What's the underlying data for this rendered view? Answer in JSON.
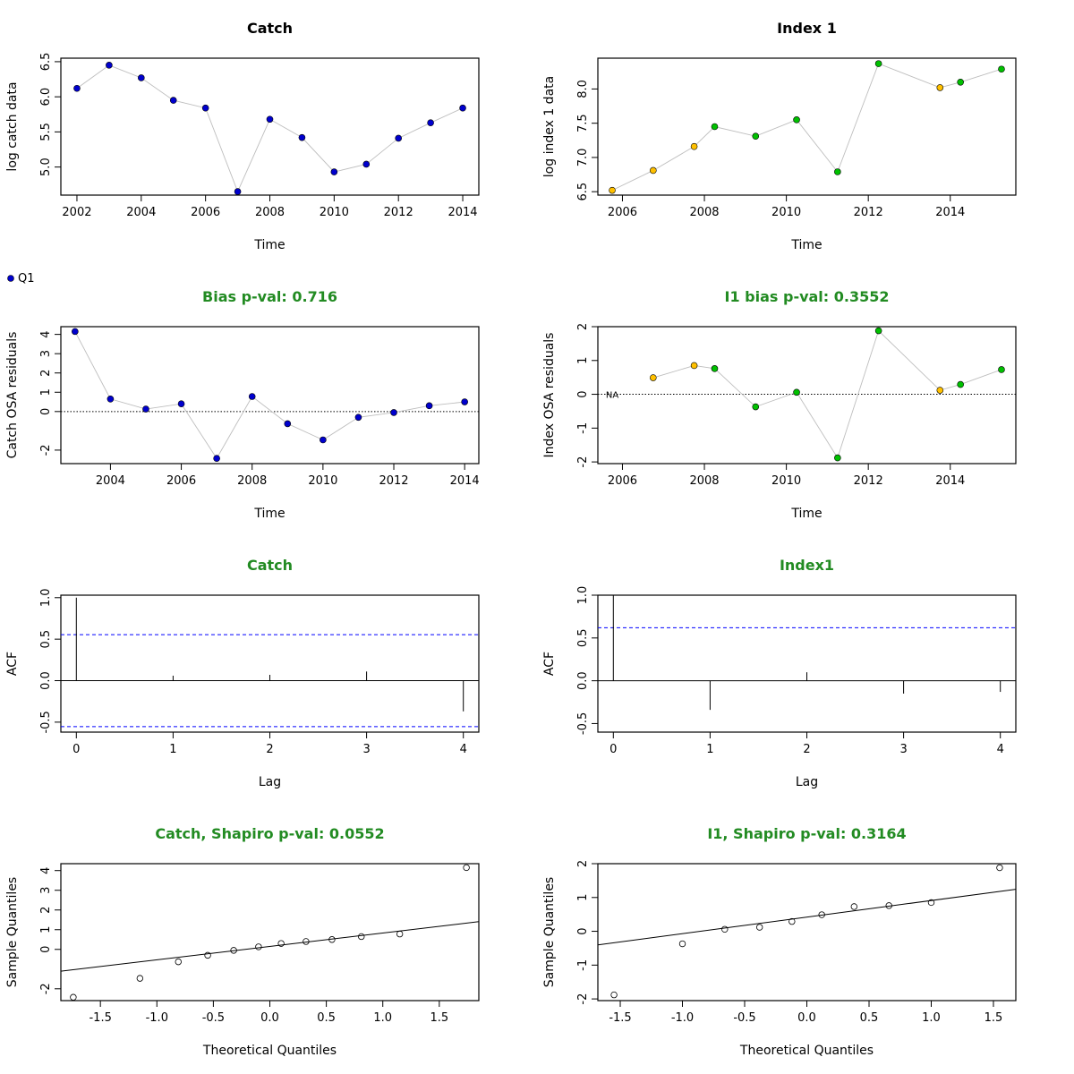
{
  "colors": {
    "green_title": "#228B22",
    "catch_point": "#0000CD",
    "index_point_a": "#FFC000",
    "index_point_b": "#00C000",
    "ref_line": "#0000FF",
    "conn_line": "#BEBEBE"
  },
  "legend": {
    "label": "Q1",
    "color": "#0000CD"
  },
  "chart_data": [
    {
      "id": "catch-log",
      "type": "scatter",
      "title": "Catch",
      "title_color": "#000000",
      "xlabel": "Time",
      "ylabel": "log catch data",
      "xlim": [
        2001.5,
        2014.5
      ],
      "ylim": [
        4.6,
        6.55
      ],
      "xticks": [
        2002,
        2004,
        2006,
        2008,
        2010,
        2012,
        2014
      ],
      "yticks": [
        5.0,
        5.5,
        6.0,
        6.5
      ],
      "ytick_labels": [
        "5.0",
        "5.5",
        "6.0",
        "6.5"
      ],
      "connect": true,
      "points": [
        {
          "x": 2002,
          "y": 6.12,
          "color": "#0000CD"
        },
        {
          "x": 2003,
          "y": 6.45,
          "color": "#0000CD"
        },
        {
          "x": 2004,
          "y": 6.27,
          "color": "#0000CD"
        },
        {
          "x": 2005,
          "y": 5.95,
          "color": "#0000CD"
        },
        {
          "x": 2006,
          "y": 5.84,
          "color": "#0000CD"
        },
        {
          "x": 2007,
          "y": 4.65,
          "color": "#0000CD"
        },
        {
          "x": 2008,
          "y": 5.68,
          "color": "#0000CD"
        },
        {
          "x": 2009,
          "y": 5.42,
          "color": "#0000CD"
        },
        {
          "x": 2010,
          "y": 4.93,
          "color": "#0000CD"
        },
        {
          "x": 2011,
          "y": 5.04,
          "color": "#0000CD"
        },
        {
          "x": 2012,
          "y": 5.41,
          "color": "#0000CD"
        },
        {
          "x": 2013,
          "y": 5.63,
          "color": "#0000CD"
        },
        {
          "x": 2014,
          "y": 5.84,
          "color": "#0000CD"
        }
      ]
    },
    {
      "id": "index-log",
      "type": "scatter",
      "title": "Index 1",
      "title_color": "#000000",
      "xlabel": "Time",
      "ylabel": "log index 1 data",
      "xlim": [
        2005.4,
        2015.6
      ],
      "ylim": [
        6.45,
        8.45
      ],
      "xticks": [
        2006,
        2008,
        2010,
        2012,
        2014
      ],
      "yticks": [
        6.5,
        7.0,
        7.5,
        8.0
      ],
      "ytick_labels": [
        "6.5",
        "7.0",
        "7.5",
        "8.0"
      ],
      "connect": true,
      "points": [
        {
          "x": 2005.75,
          "y": 6.52,
          "color": "#FFC000"
        },
        {
          "x": 2006.75,
          "y": 6.81,
          "color": "#FFC000"
        },
        {
          "x": 2007.75,
          "y": 7.16,
          "color": "#FFC000"
        },
        {
          "x": 2008.25,
          "y": 7.45,
          "color": "#00C000"
        },
        {
          "x": 2009.25,
          "y": 7.31,
          "color": "#00C000"
        },
        {
          "x": 2010.25,
          "y": 7.55,
          "color": "#00C000"
        },
        {
          "x": 2011.25,
          "y": 6.79,
          "color": "#00C000"
        },
        {
          "x": 2012.25,
          "y": 8.37,
          "color": "#00C000"
        },
        {
          "x": 2013.75,
          "y": 8.02,
          "color": "#FFC000"
        },
        {
          "x": 2014.25,
          "y": 8.1,
          "color": "#00C000"
        },
        {
          "x": 2015.25,
          "y": 8.29,
          "color": "#00C000"
        }
      ]
    },
    {
      "id": "catch-resid",
      "type": "scatter",
      "title": "Bias p-val: 0.716",
      "title_color": "#228B22",
      "xlabel": "Time",
      "ylabel": "Catch OSA residuals",
      "xlim": [
        2002.6,
        2014.4
      ],
      "ylim": [
        -2.7,
        4.4
      ],
      "xticks": [
        2004,
        2006,
        2008,
        2010,
        2012,
        2014
      ],
      "yticks": [
        -2,
        0,
        1,
        2,
        3,
        4
      ],
      "ytick_labels": [
        "-2",
        "0",
        "1",
        "2",
        "3",
        "4"
      ],
      "zero_line": 0,
      "connect": true,
      "points": [
        {
          "x": 2003,
          "y": 4.15,
          "color": "#0000CD"
        },
        {
          "x": 2004,
          "y": 0.65,
          "color": "#0000CD"
        },
        {
          "x": 2005,
          "y": 0.13,
          "color": "#0000CD"
        },
        {
          "x": 2006,
          "y": 0.4,
          "color": "#0000CD"
        },
        {
          "x": 2007,
          "y": -2.43,
          "color": "#0000CD"
        },
        {
          "x": 2008,
          "y": 0.78,
          "color": "#0000CD"
        },
        {
          "x": 2009,
          "y": -0.63,
          "color": "#0000CD"
        },
        {
          "x": 2010,
          "y": -1.47,
          "color": "#0000CD"
        },
        {
          "x": 2011,
          "y": -0.3,
          "color": "#0000CD"
        },
        {
          "x": 2012,
          "y": -0.05,
          "color": "#0000CD"
        },
        {
          "x": 2013,
          "y": 0.3,
          "color": "#0000CD"
        },
        {
          "x": 2014,
          "y": 0.5,
          "color": "#0000CD"
        }
      ]
    },
    {
      "id": "index-resid",
      "type": "scatter",
      "title": "I1 bias p-val: 0.3552",
      "title_color": "#228B22",
      "xlabel": "Time",
      "ylabel": "Index OSA residuals",
      "xlim": [
        2005.4,
        2015.6
      ],
      "ylim": [
        -2.05,
        2.0
      ],
      "xticks": [
        2006,
        2008,
        2010,
        2012,
        2014
      ],
      "yticks": [
        -2,
        -1,
        0,
        1,
        2
      ],
      "ytick_labels": [
        "-2",
        "-1",
        "0",
        "1",
        "2"
      ],
      "zero_line": 0,
      "na_label": "NA",
      "na_x": 2005.75,
      "connect": true,
      "points": [
        {
          "x": 2006.75,
          "y": 0.49,
          "color": "#FFC000"
        },
        {
          "x": 2007.75,
          "y": 0.85,
          "color": "#FFC000"
        },
        {
          "x": 2008.25,
          "y": 0.76,
          "color": "#00C000"
        },
        {
          "x": 2009.25,
          "y": -0.37,
          "color": "#00C000"
        },
        {
          "x": 2010.25,
          "y": 0.06,
          "color": "#00C000"
        },
        {
          "x": 2011.25,
          "y": -1.88,
          "color": "#00C000"
        },
        {
          "x": 2012.25,
          "y": 1.88,
          "color": "#00C000"
        },
        {
          "x": 2013.75,
          "y": 0.12,
          "color": "#FFC000"
        },
        {
          "x": 2014.25,
          "y": 0.29,
          "color": "#00C000"
        },
        {
          "x": 2015.25,
          "y": 0.73,
          "color": "#00C000"
        }
      ]
    },
    {
      "id": "catch-acf",
      "type": "bar",
      "title": "Catch",
      "title_color": "#228B22",
      "xlabel": "Lag",
      "ylabel": "ACF",
      "xlim": [
        -0.16,
        4.16
      ],
      "ylim": [
        -0.62,
        1.03
      ],
      "xticks": [
        0,
        1,
        2,
        3,
        4
      ],
      "yticks": [
        -0.5,
        0.0,
        0.5,
        1.0
      ],
      "ytick_labels": [
        "-0.5",
        "0.0",
        "0.5",
        "1.0"
      ],
      "ci": 0.554,
      "lags": [
        0,
        1,
        2,
        3,
        4
      ],
      "values": [
        1.0,
        0.06,
        0.07,
        0.11,
        -0.37
      ]
    },
    {
      "id": "index-acf",
      "type": "bar",
      "title": "Index1",
      "title_color": "#228B22",
      "xlabel": "Lag",
      "ylabel": "ACF",
      "xlim": [
        -0.16,
        4.16
      ],
      "ylim": [
        -0.6,
        1.0
      ],
      "xticks": [
        0,
        1,
        2,
        3,
        4
      ],
      "yticks": [
        -0.5,
        0.0,
        0.5,
        1.0
      ],
      "ytick_labels": [
        "-0.5",
        "0.0",
        "0.5",
        "1.0"
      ],
      "ci": 0.62,
      "lags": [
        0,
        1,
        2,
        3,
        4
      ],
      "values": [
        1.0,
        -0.34,
        0.1,
        -0.15,
        -0.13
      ]
    },
    {
      "id": "catch-qq",
      "type": "scatter",
      "title": "Catch, Shapiro p-val: 0.0552",
      "title_color": "#228B22",
      "xlabel": "Theoretical Quantiles",
      "ylabel": "Sample Quantiles",
      "xlim": [
        -1.85,
        1.85
      ],
      "ylim": [
        -2.6,
        4.35
      ],
      "xticks": [
        -1.5,
        -1.0,
        -0.5,
        0.0,
        0.5,
        1.0,
        1.5
      ],
      "xtick_labels": [
        "-1.5",
        "-1.0",
        "-0.5",
        "0.0",
        "0.5",
        "1.0",
        "1.5"
      ],
      "yticks": [
        -2,
        0,
        1,
        2,
        3,
        4
      ],
      "ytick_labels": [
        "-2",
        "0",
        "1",
        "2",
        "3",
        "4"
      ],
      "connect": false,
      "open_points": true,
      "qq_line": {
        "intercept": 0.15,
        "slope": 0.68
      },
      "points": [
        {
          "x": -1.74,
          "y": -2.43
        },
        {
          "x": -1.15,
          "y": -1.47
        },
        {
          "x": -0.81,
          "y": -0.63
        },
        {
          "x": -0.55,
          "y": -0.3
        },
        {
          "x": -0.32,
          "y": -0.05
        },
        {
          "x": -0.1,
          "y": 0.13
        },
        {
          "x": 0.1,
          "y": 0.3
        },
        {
          "x": 0.32,
          "y": 0.4
        },
        {
          "x": 0.55,
          "y": 0.5
        },
        {
          "x": 0.81,
          "y": 0.65
        },
        {
          "x": 1.15,
          "y": 0.78
        },
        {
          "x": 1.74,
          "y": 4.15
        }
      ]
    },
    {
      "id": "index-qq",
      "type": "scatter",
      "title": "I1, Shapiro p-val: 0.3164",
      "title_color": "#228B22",
      "xlabel": "Theoretical Quantiles",
      "ylabel": "Sample Quantiles",
      "xlim": [
        -1.68,
        1.68
      ],
      "ylim": [
        -2.05,
        2.0
      ],
      "xticks": [
        -1.5,
        -1.0,
        -0.5,
        0.0,
        0.5,
        1.0,
        1.5
      ],
      "xtick_labels": [
        "-1.5",
        "-1.0",
        "-0.5",
        "0.0",
        "0.5",
        "1.0",
        "1.5"
      ],
      "yticks": [
        -2,
        -1,
        0,
        1,
        2
      ],
      "ytick_labels": [
        "-2",
        "-1",
        "0",
        "1",
        "2"
      ],
      "connect": false,
      "open_points": true,
      "qq_line": {
        "intercept": 0.42,
        "slope": 0.49
      },
      "points": [
        {
          "x": -1.55,
          "y": -1.88
        },
        {
          "x": -1.0,
          "y": -0.37
        },
        {
          "x": -0.66,
          "y": 0.06
        },
        {
          "x": -0.38,
          "y": 0.12
        },
        {
          "x": -0.12,
          "y": 0.29
        },
        {
          "x": 0.12,
          "y": 0.49
        },
        {
          "x": 0.38,
          "y": 0.73
        },
        {
          "x": 0.66,
          "y": 0.76
        },
        {
          "x": 1.0,
          "y": 0.85
        },
        {
          "x": 1.55,
          "y": 1.88
        }
      ]
    }
  ]
}
